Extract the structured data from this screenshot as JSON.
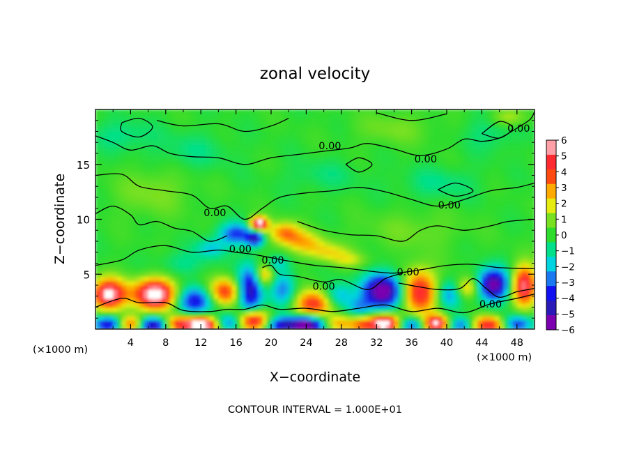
{
  "chart_data": {
    "type": "heatmap",
    "title": "zonal velocity",
    "xlabel": "X−coordinate",
    "ylabel": "Z−coordinate",
    "x_unit_left": "(×1000 m)",
    "x_unit_right": "(×1000 m)",
    "footer": "CONTOUR INTERVAL = 1.000E+01",
    "xlim": [
      0,
      50
    ],
    "ylim": [
      0,
      20
    ],
    "x_ticks": [
      4,
      8,
      12,
      16,
      20,
      24,
      28,
      32,
      36,
      40,
      44,
      48
    ],
    "x_tick_labels": [
      "4",
      "8",
      "12",
      "16",
      "20",
      "24",
      "28",
      "32",
      "36",
      "40",
      "44",
      "48"
    ],
    "y_ticks": [
      5,
      10,
      15
    ],
    "y_tick_labels": [
      "5",
      "10",
      "15"
    ],
    "colorbar": {
      "min": -6,
      "max": 6,
      "tick_labels": [
        "6",
        "5",
        "4",
        "3",
        "2",
        "1",
        "0",
        "−1",
        "−2",
        "−3",
        "−4",
        "−5",
        "−6"
      ],
      "colors": [
        "#7a00b0",
        "#2a1ab8",
        "#1010f0",
        "#1a78f0",
        "#00d4e0",
        "#00e08a",
        "#2edc2e",
        "#78e020",
        "#e6ec10",
        "#ffaa00",
        "#ff4a10",
        "#ff2a30",
        "#ffa0a8"
      ]
    },
    "contour_labels": [
      {
        "text": "0.00",
        "x": 26.7,
        "y": 16.7
      },
      {
        "text": "0.00",
        "x": 37.6,
        "y": 15.5
      },
      {
        "text": "0.00",
        "x": 48.2,
        "y": 18.3
      },
      {
        "text": "0.00",
        "x": 13.6,
        "y": 10.6
      },
      {
        "text": "0.00",
        "x": 40.3,
        "y": 11.3
      },
      {
        "text": "0.00",
        "x": 16.5,
        "y": 7.3
      },
      {
        "text": "0.00",
        "x": 20.2,
        "y": 6.3
      },
      {
        "text": "0.00",
        "x": 26.0,
        "y": 3.9
      },
      {
        "text": "0.00",
        "x": 35.6,
        "y": 5.2
      },
      {
        "text": "0.00",
        "x": 45.0,
        "y": 2.3
      }
    ],
    "features": [
      {
        "x": 1.5,
        "y": 3.2,
        "v": 5.5,
        "sx": 1.4,
        "sy": 1.0
      },
      {
        "x": 6.8,
        "y": 3.2,
        "v": 6.0,
        "sx": 1.8,
        "sy": 1.0
      },
      {
        "x": 11.3,
        "y": 2.6,
        "v": -4.0,
        "sx": 1.5,
        "sy": 0.9
      },
      {
        "x": 14.7,
        "y": 3.4,
        "v": 4.0,
        "sx": 1.3,
        "sy": 0.9
      },
      {
        "x": 17.6,
        "y": 3.5,
        "v": -4.8,
        "sx": 1.0,
        "sy": 1.6
      },
      {
        "x": 19.2,
        "y": 5.0,
        "v": 3.0,
        "sx": 0.8,
        "sy": 0.8
      },
      {
        "x": 21.4,
        "y": 3.6,
        "v": -2.5,
        "sx": 1.0,
        "sy": 1.2
      },
      {
        "x": 24.9,
        "y": 2.3,
        "v": 4.3,
        "sx": 1.6,
        "sy": 0.9
      },
      {
        "x": 27.6,
        "y": 3.0,
        "v": -2.5,
        "sx": 1.2,
        "sy": 0.8
      },
      {
        "x": 30.0,
        "y": 2.0,
        "v": -1.8,
        "sx": 1.0,
        "sy": 0.6
      },
      {
        "x": 32.8,
        "y": 3.5,
        "v": -6.0,
        "sx": 1.6,
        "sy": 1.1
      },
      {
        "x": 36.8,
        "y": 3.4,
        "v": 4.5,
        "sx": 1.5,
        "sy": 1.5
      },
      {
        "x": 40.2,
        "y": 3.1,
        "v": -2.5,
        "sx": 1.0,
        "sy": 0.9
      },
      {
        "x": 42.4,
        "y": 3.8,
        "v": 2.5,
        "sx": 1.0,
        "sy": 0.7
      },
      {
        "x": 45.3,
        "y": 4.1,
        "v": -5.5,
        "sx": 1.3,
        "sy": 1.0
      },
      {
        "x": 48.8,
        "y": 4.0,
        "v": 5.0,
        "sx": 1.0,
        "sy": 1.3
      },
      {
        "x": 1.5,
        "y": 0.5,
        "v": -4.5,
        "sx": 1.2,
        "sy": 0.55
      },
      {
        "x": 4.0,
        "y": 0.5,
        "v": 4.0,
        "sx": 1.1,
        "sy": 0.55
      },
      {
        "x": 6.5,
        "y": 0.4,
        "v": -5.0,
        "sx": 1.2,
        "sy": 0.55
      },
      {
        "x": 9.4,
        "y": 0.5,
        "v": 4.0,
        "sx": 1.2,
        "sy": 0.55
      },
      {
        "x": 12.2,
        "y": 0.4,
        "v": 6.0,
        "sx": 1.3,
        "sy": 0.55
      },
      {
        "x": 15.3,
        "y": 0.6,
        "v": -3.0,
        "sx": 1.1,
        "sy": 0.55
      },
      {
        "x": 17.9,
        "y": 0.8,
        "v": 5.5,
        "sx": 1.3,
        "sy": 0.7
      },
      {
        "x": 21.0,
        "y": 0.4,
        "v": -3.5,
        "sx": 1.2,
        "sy": 0.55
      },
      {
        "x": 24.0,
        "y": 0.4,
        "v": -6.0,
        "sx": 1.5,
        "sy": 0.6
      },
      {
        "x": 27.5,
        "y": 0.5,
        "v": 2.5,
        "sx": 1.1,
        "sy": 0.55
      },
      {
        "x": 30.2,
        "y": 0.4,
        "v": 3.0,
        "sx": 1.1,
        "sy": 0.55
      },
      {
        "x": 33.0,
        "y": 0.5,
        "v": 6.0,
        "sx": 1.3,
        "sy": 0.6
      },
      {
        "x": 36.0,
        "y": 0.4,
        "v": -3.5,
        "sx": 1.2,
        "sy": 0.55
      },
      {
        "x": 38.8,
        "y": 0.5,
        "v": 5.5,
        "sx": 1.1,
        "sy": 0.55
      },
      {
        "x": 41.6,
        "y": 0.4,
        "v": -3.0,
        "sx": 1.1,
        "sy": 0.55
      },
      {
        "x": 44.8,
        "y": 0.4,
        "v": 4.5,
        "sx": 1.4,
        "sy": 0.6
      },
      {
        "x": 48.0,
        "y": 0.5,
        "v": -3.5,
        "sx": 1.2,
        "sy": 0.55
      },
      {
        "x": 16.0,
        "y": 8.7,
        "v": -3.2,
        "sx": 1.4,
        "sy": 0.7
      },
      {
        "x": 13.2,
        "y": 7.4,
        "v": -1.8,
        "sx": 1.2,
        "sy": 0.6
      },
      {
        "x": 18.6,
        "y": 9.6,
        "v": 6.0,
        "sx": 0.7,
        "sy": 0.45
      },
      {
        "x": 18.2,
        "y": 8.3,
        "v": -4.0,
        "sx": 0.7,
        "sy": 0.5
      },
      {
        "x": 21.5,
        "y": 8.8,
        "v": 3.0,
        "sx": 1.3,
        "sy": 0.7
      },
      {
        "x": 23.8,
        "y": 7.9,
        "v": 2.2,
        "sx": 1.6,
        "sy": 0.7
      },
      {
        "x": 26.5,
        "y": 7.0,
        "v": 1.8,
        "sx": 1.6,
        "sy": 0.6
      },
      {
        "x": 29.0,
        "y": 6.3,
        "v": 1.3,
        "sx": 1.4,
        "sy": 0.5
      },
      {
        "x": 20.5,
        "y": 6.0,
        "v": -1.5,
        "sx": 1.0,
        "sy": 0.5
      },
      {
        "x": 3.0,
        "y": 17.7,
        "v": -0.9,
        "sx": 2.5,
        "sy": 1.0
      },
      {
        "x": 11.0,
        "y": 16.2,
        "v": -0.7,
        "sx": 3.0,
        "sy": 1.2
      },
      {
        "x": 39.0,
        "y": 13.3,
        "v": -0.8,
        "sx": 3.0,
        "sy": 1.0
      },
      {
        "x": 26.0,
        "y": 14.0,
        "v": -0.6,
        "sx": 3.0,
        "sy": 1.0
      },
      {
        "x": 45.0,
        "y": 18.0,
        "v": -0.8,
        "sx": 2.0,
        "sy": 1.2
      },
      {
        "x": 47.0,
        "y": 19.3,
        "v": 1.5,
        "sx": 1.5,
        "sy": 0.6
      },
      {
        "x": 34.0,
        "y": 18.3,
        "v": 0.8,
        "sx": 3.0,
        "sy": 1.0
      },
      {
        "x": 6.5,
        "y": 12.5,
        "v": 0.9,
        "sx": 3.0,
        "sy": 1.5
      },
      {
        "x": 36.0,
        "y": 9.0,
        "v": 0.7,
        "sx": 4.0,
        "sy": 1.2
      },
      {
        "x": 10.0,
        "y": 6.0,
        "v": -0.9,
        "sx": 2.0,
        "sy": 0.8
      }
    ],
    "contours": [
      [
        [
          0,
          17.6
        ],
        [
          2,
          17.0
        ],
        [
          4,
          16.3
        ],
        [
          6.5,
          16.7
        ],
        [
          8.5,
          16.0
        ],
        [
          11,
          15.7
        ],
        [
          14,
          15.6
        ],
        [
          17,
          15.0
        ],
        [
          20,
          15.6
        ],
        [
          23,
          15.9
        ],
        [
          26,
          16.2
        ],
        [
          29,
          16.5
        ],
        [
          31,
          16.9
        ],
        [
          34,
          16.4
        ],
        [
          37,
          15.8
        ],
        [
          40,
          16.4
        ],
        [
          42,
          17.3
        ],
        [
          44,
          17.1
        ],
        [
          46,
          17.4
        ],
        [
          48,
          18.3
        ],
        [
          49.5,
          19.1
        ],
        [
          50,
          19.8
        ]
      ],
      [
        [
          7,
          19.0
        ],
        [
          10,
          18.5
        ],
        [
          14,
          18.7
        ],
        [
          17,
          18.0
        ],
        [
          20,
          18.5
        ],
        [
          22,
          19.2
        ]
      ],
      [
        [
          3,
          18.8
        ],
        [
          5,
          19.2
        ],
        [
          6.5,
          18.4
        ],
        [
          5,
          17.5
        ],
        [
          3,
          18.0
        ],
        [
          3,
          18.8
        ]
      ],
      [
        [
          32,
          19.7
        ],
        [
          36,
          19.0
        ],
        [
          40,
          19.6
        ]
      ],
      [
        [
          0,
          14.0
        ],
        [
          3,
          14.1
        ],
        [
          5,
          13.0
        ],
        [
          8,
          12.6
        ],
        [
          11,
          12.2
        ],
        [
          13,
          11.0
        ],
        [
          15,
          11.2
        ],
        [
          17,
          10.0
        ],
        [
          19,
          11.0
        ],
        [
          21,
          12.0
        ],
        [
          24,
          12.4
        ],
        [
          27,
          12.6
        ],
        [
          30,
          12.9
        ],
        [
          33,
          12.5
        ],
        [
          36,
          11.8
        ],
        [
          39,
          11.2
        ],
        [
          42,
          11.8
        ],
        [
          45,
          12.6
        ],
        [
          48,
          12.9
        ],
        [
          50,
          13.3
        ]
      ],
      [
        [
          0,
          10.5
        ],
        [
          2,
          11.2
        ],
        [
          4,
          10.4
        ],
        [
          5,
          9.5
        ],
        [
          7,
          9.8
        ],
        [
          9,
          9.2
        ],
        [
          11,
          8.9
        ],
        [
          13,
          8.0
        ],
        [
          15,
          8.5
        ]
      ],
      [
        [
          23,
          9.8
        ],
        [
          26,
          9.0
        ],
        [
          29,
          8.6
        ],
        [
          32,
          8.5
        ],
        [
          35,
          8.0
        ],
        [
          37,
          9.0
        ],
        [
          39,
          9.4
        ],
        [
          42,
          9.0
        ],
        [
          45,
          9.4
        ],
        [
          47,
          9.8
        ],
        [
          50,
          10.0
        ]
      ],
      [
        [
          0,
          5.8
        ],
        [
          3,
          6.3
        ],
        [
          5,
          7.2
        ],
        [
          8,
          7.6
        ],
        [
          11,
          7.0
        ],
        [
          14,
          7.2
        ],
        [
          16,
          7.0
        ],
        [
          18,
          6.8
        ],
        [
          20,
          6.5
        ],
        [
          22,
          6.2
        ],
        [
          25,
          5.8
        ],
        [
          28,
          5.6
        ],
        [
          31,
          5.3
        ],
        [
          34,
          5.1
        ],
        [
          37,
          5.4
        ],
        [
          40,
          5.8
        ],
        [
          43,
          5.9
        ],
        [
          46,
          5.6
        ],
        [
          50,
          5.5
        ]
      ],
      [
        [
          0,
          2.0
        ],
        [
          3,
          2.8
        ],
        [
          5,
          2.4
        ],
        [
          8,
          2.4
        ],
        [
          10,
          1.7
        ],
        [
          13,
          1.6
        ],
        [
          15,
          1.8
        ],
        [
          17,
          1.8
        ],
        [
          19,
          2.2
        ],
        [
          21,
          1.8
        ],
        [
          24,
          1.9
        ],
        [
          27,
          1.6
        ],
        [
          30,
          1.9
        ],
        [
          33,
          2.2
        ],
        [
          36,
          1.6
        ],
        [
          39,
          1.9
        ],
        [
          42,
          1.5
        ],
        [
          45,
          2.3
        ],
        [
          48,
          2.8
        ],
        [
          50,
          3.2
        ]
      ],
      [
        [
          19,
          5.6
        ],
        [
          20,
          5.8
        ],
        [
          21,
          5.0
        ],
        [
          23,
          4.8
        ],
        [
          26,
          4.3
        ],
        [
          28,
          4.5
        ],
        [
          31,
          3.6
        ],
        [
          33,
          4.6
        ],
        [
          35,
          5.1
        ]
      ],
      [
        [
          34.5,
          4.2
        ],
        [
          36.5,
          3.9
        ],
        [
          39,
          3.6
        ],
        [
          41.5,
          3.7
        ],
        [
          43,
          4.6
        ],
        [
          44.5,
          3.7
        ],
        [
          46,
          2.9
        ],
        [
          48,
          3.4
        ],
        [
          50,
          3.7
        ]
      ],
      [
        [
          28.5,
          15.0
        ],
        [
          30,
          14.3
        ],
        [
          31.5,
          15.0
        ],
        [
          30,
          15.6
        ],
        [
          28.5,
          15.0
        ]
      ],
      [
        [
          39,
          12.7
        ],
        [
          41,
          12.1
        ],
        [
          43,
          12.6
        ],
        [
          41,
          13.3
        ],
        [
          39,
          12.7
        ]
      ],
      [
        [
          44,
          17.8
        ],
        [
          46,
          17.4
        ],
        [
          47.5,
          18.3
        ],
        [
          46,
          18.9
        ],
        [
          44,
          17.8
        ]
      ]
    ]
  }
}
